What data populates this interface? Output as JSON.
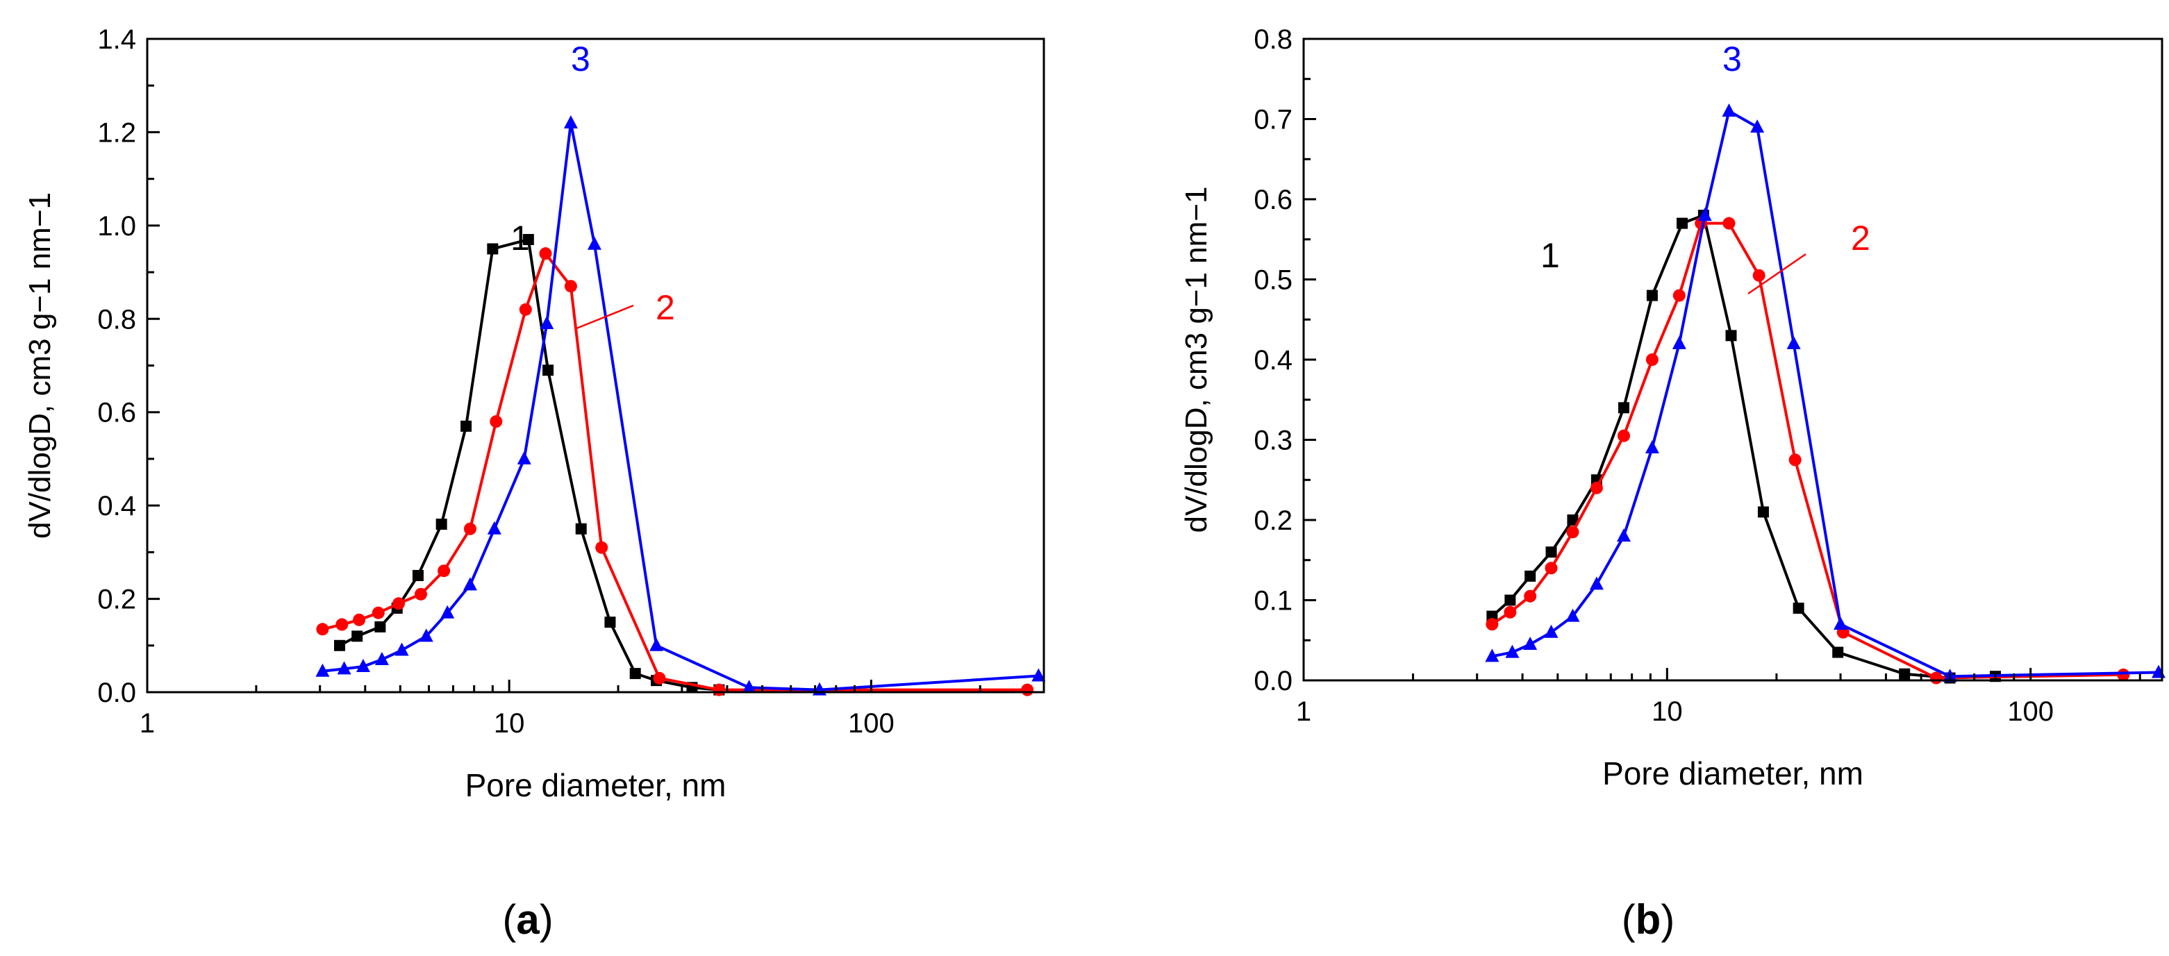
{
  "chart_data": [
    {
      "type": "line",
      "panel_label": "a",
      "title": "",
      "xlabel": "Pore diameter, nm",
      "ylabel": "dV/dlogD, cm3 g−1 nm−1",
      "xscale": "log",
      "xlim": [
        1,
        300
      ],
      "ylim": [
        0,
        1.4
      ],
      "xticks": [
        1,
        10,
        100
      ],
      "xtick_labels": [
        "1",
        "10",
        "100"
      ],
      "yticks": [
        0.0,
        0.2,
        0.4,
        0.6,
        0.8,
        1.0,
        1.2,
        1.4
      ],
      "ytick_labels": [
        "0.0",
        "0.2",
        "0.4",
        "0.6",
        "0.8",
        "1.0",
        "1.2",
        "1.4"
      ],
      "series": [
        {
          "name": "1",
          "color": "#000000",
          "marker": "square",
          "x": [
            3.4,
            3.8,
            4.4,
            4.9,
            5.6,
            6.5,
            7.6,
            9.0,
            11.3,
            12.8,
            15.8,
            19.0,
            22.3,
            25.5,
            32.0,
            38.0
          ],
          "y": [
            0.1,
            0.12,
            0.14,
            0.18,
            0.25,
            0.36,
            0.57,
            0.95,
            0.97,
            0.69,
            0.35,
            0.15,
            0.04,
            0.025,
            0.01,
            0.005
          ]
        },
        {
          "name": "2",
          "color": "#ff0000",
          "marker": "circle",
          "x": [
            3.05,
            3.45,
            3.85,
            4.35,
            4.95,
            5.7,
            6.6,
            7.8,
            9.2,
            11.1,
            12.6,
            14.8,
            18.0,
            26.0,
            38.0,
            270.0
          ],
          "y": [
            0.135,
            0.145,
            0.155,
            0.17,
            0.19,
            0.21,
            0.26,
            0.35,
            0.58,
            0.82,
            0.94,
            0.87,
            0.31,
            0.03,
            0.005,
            0.005
          ]
        },
        {
          "name": "3",
          "color": "#0000ff",
          "marker": "triangle",
          "x": [
            3.05,
            3.5,
            3.95,
            4.45,
            5.05,
            5.9,
            6.75,
            7.8,
            9.1,
            11.0,
            12.7,
            14.8,
            17.2,
            25.5,
            46.0,
            72.0,
            290.0
          ],
          "y": [
            0.045,
            0.05,
            0.055,
            0.07,
            0.09,
            0.12,
            0.17,
            0.23,
            0.35,
            0.5,
            0.79,
            1.22,
            0.96,
            0.1,
            0.01,
            0.005,
            0.035
          ]
        }
      ],
      "annotations": [
        {
          "text": "1",
          "color": "#000000"
        },
        {
          "text": "2",
          "color": "#ff0000"
        },
        {
          "text": "3",
          "color": "#0000ff"
        }
      ]
    },
    {
      "type": "line",
      "panel_label": "b",
      "title": "",
      "xlabel": "Pore diameter, nm",
      "ylabel": "dV/dlogD, cm3 g−1 nm−1",
      "xscale": "log",
      "xlim": [
        1,
        230
      ],
      "ylim": [
        0,
        0.8
      ],
      "xticks": [
        1,
        10,
        100
      ],
      "xtick_labels": [
        "1",
        "10",
        "100"
      ],
      "yticks": [
        0.0,
        0.1,
        0.2,
        0.3,
        0.4,
        0.5,
        0.6,
        0.7,
        0.8
      ],
      "ytick_labels": [
        "0.0",
        "0.1",
        "0.2",
        "0.3",
        "0.4",
        "0.5",
        "0.6",
        "0.7",
        "0.8"
      ],
      "series": [
        {
          "name": "1",
          "color": "#000000",
          "marker": "square",
          "x": [
            3.3,
            3.7,
            4.2,
            4.8,
            5.5,
            6.4,
            7.6,
            9.1,
            11.0,
            12.6,
            15.0,
            18.4,
            23.0,
            29.5,
            45.0,
            60.0,
            80.0
          ],
          "y": [
            0.08,
            0.1,
            0.13,
            0.16,
            0.2,
            0.25,
            0.34,
            0.48,
            0.57,
            0.58,
            0.43,
            0.21,
            0.09,
            0.035,
            0.008,
            0.003,
            0.005
          ]
        },
        {
          "name": "2",
          "color": "#ff0000",
          "marker": "circle",
          "x": [
            3.3,
            3.7,
            4.2,
            4.8,
            5.5,
            6.4,
            7.6,
            9.1,
            10.8,
            12.4,
            14.8,
            17.9,
            22.5,
            30.5,
            55.0,
            180.0
          ],
          "y": [
            0.07,
            0.085,
            0.105,
            0.14,
            0.185,
            0.24,
            0.305,
            0.4,
            0.48,
            0.57,
            0.57,
            0.505,
            0.275,
            0.06,
            0.003,
            0.007
          ]
        },
        {
          "name": "3",
          "color": "#0000ff",
          "marker": "triangle",
          "x": [
            3.3,
            3.75,
            4.2,
            4.8,
            5.5,
            6.4,
            7.6,
            9.1,
            10.8,
            12.7,
            14.8,
            17.7,
            22.3,
            30.0,
            60.0,
            225.0
          ],
          "y": [
            0.03,
            0.035,
            0.045,
            0.06,
            0.08,
            0.12,
            0.18,
            0.29,
            0.42,
            0.58,
            0.71,
            0.69,
            0.42,
            0.07,
            0.005,
            0.01
          ]
        }
      ],
      "annotations": [
        {
          "text": "1",
          "color": "#000000"
        },
        {
          "text": "2",
          "color": "#ff0000"
        },
        {
          "text": "3",
          "color": "#0000ff"
        }
      ]
    }
  ]
}
